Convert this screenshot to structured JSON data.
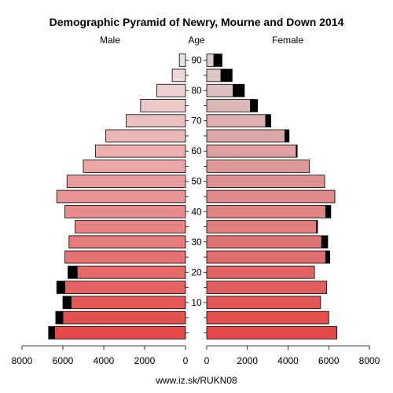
{
  "chart_data": {
    "type": "bar",
    "title": "Demographic Pyramid of Newry, Mourne and Down 2014",
    "left_header": "Male",
    "center_header": "Age",
    "right_header": "Female",
    "source": "www.iz.sk/RUKN08",
    "x_range": [
      0,
      8000
    ],
    "x_ticks": [
      "8000",
      "6000",
      "4000",
      "2000",
      "0",
      "0",
      "2000",
      "4000",
      "6000",
      "8000"
    ],
    "x_tick_values": [
      8000,
      6000,
      4000,
      2000,
      0,
      0,
      2000,
      4000,
      6000,
      8000
    ],
    "age_ticks": [
      "10",
      "20",
      "30",
      "40",
      "50",
      "60",
      "70",
      "80",
      "90"
    ],
    "age_groups": [
      "0-4",
      "5-9",
      "10-14",
      "15-19",
      "20-24",
      "25-29",
      "30-34",
      "35-39",
      "40-44",
      "45-49",
      "50-54",
      "55-59",
      "60-64",
      "65-69",
      "70-74",
      "75-79",
      "80-84",
      "85-89",
      "90+"
    ],
    "series": [
      {
        "name": "Male",
        "values": [
          6400,
          6000,
          5600,
          5900,
          5300,
          5900,
          5700,
          5400,
          5900,
          6300,
          5800,
          5000,
          4400,
          3900,
          2900,
          2200,
          1400,
          650,
          300
        ],
        "excess": [
          300,
          350,
          400,
          400,
          450,
          0,
          0,
          0,
          0,
          0,
          0,
          0,
          0,
          0,
          0,
          0,
          0,
          0,
          0
        ]
      },
      {
        "name": "Female",
        "values": [
          6400,
          6000,
          5600,
          5900,
          5300,
          5850,
          5650,
          5400,
          5850,
          6300,
          5800,
          5050,
          4400,
          3850,
          2900,
          2150,
          1300,
          700,
          350
        ],
        "excess": [
          0,
          0,
          0,
          0,
          0,
          200,
          300,
          50,
          250,
          0,
          0,
          0,
          50,
          200,
          250,
          350,
          550,
          550,
          400
        ]
      }
    ]
  }
}
